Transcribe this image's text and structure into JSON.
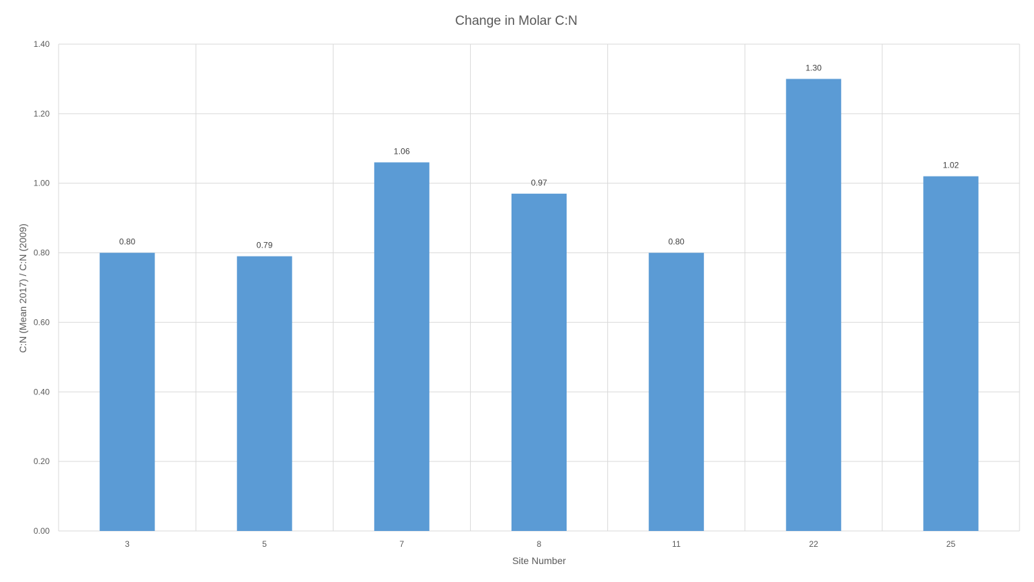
{
  "chart_data": {
    "type": "bar",
    "title": "Change in Molar C:N",
    "xlabel": "Site Number",
    "ylabel": "C:N (Mean 2017) / C:N (2009)",
    "categories": [
      "3",
      "5",
      "7",
      "8",
      "11",
      "22",
      "25"
    ],
    "values": [
      0.8,
      0.79,
      1.06,
      0.97,
      0.8,
      1.3,
      1.02
    ],
    "data_labels": [
      "0.80",
      "0.79",
      "1.06",
      "0.97",
      "0.80",
      "1.30",
      "1.02"
    ],
    "ylim": [
      0,
      1.4
    ],
    "yticks": [
      "0.00",
      "0.20",
      "0.40",
      "0.60",
      "0.80",
      "1.00",
      "1.20",
      "1.40"
    ],
    "grid": true,
    "bar_color": "#5b9bd5"
  }
}
